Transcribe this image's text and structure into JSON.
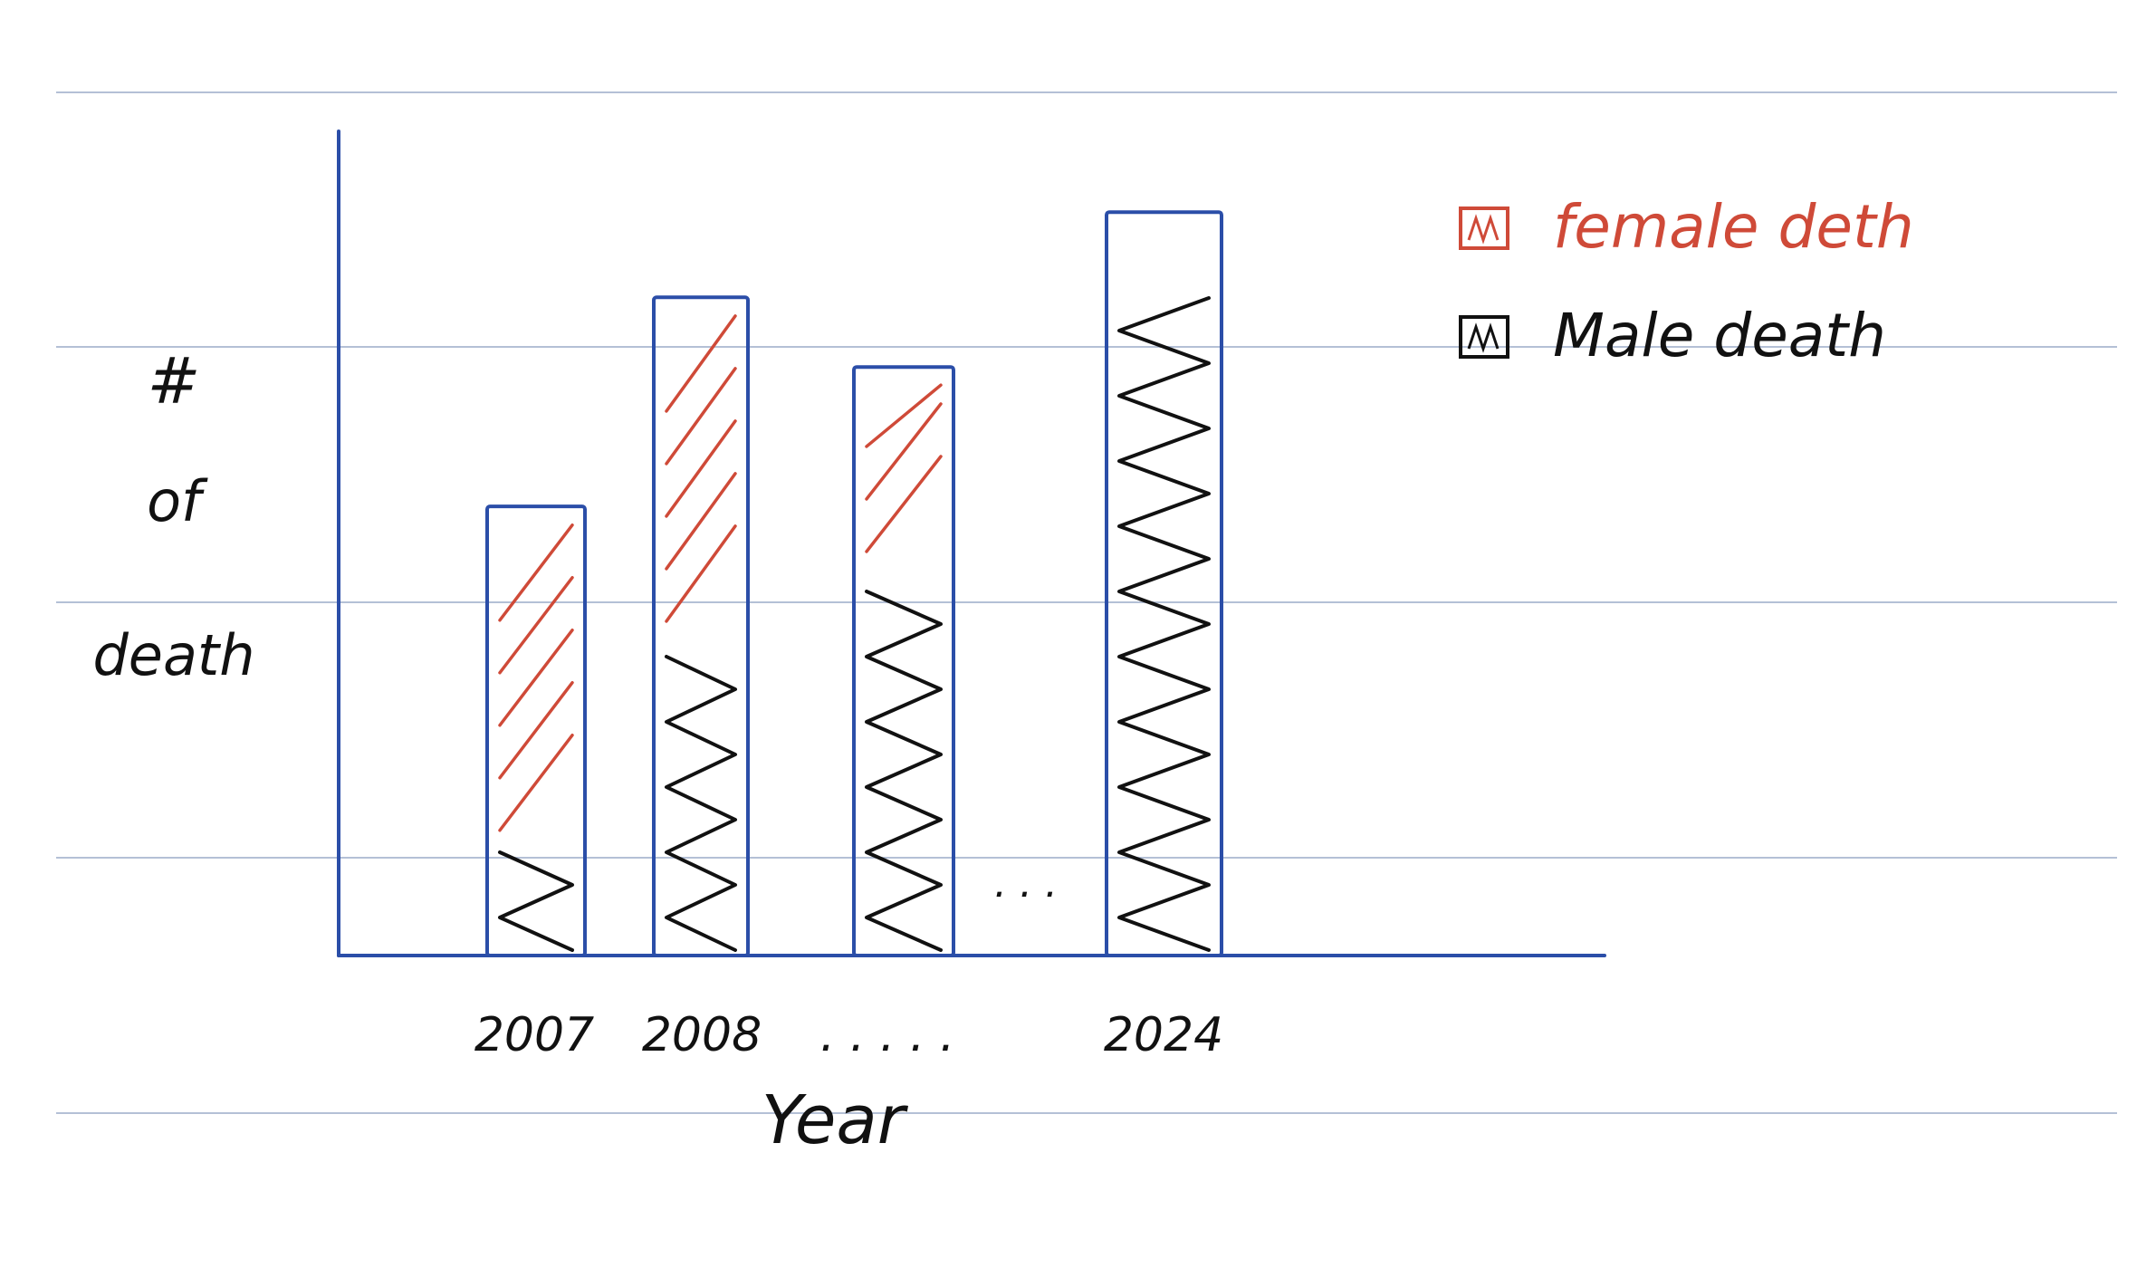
{
  "page": {
    "ruled_line_color": "#b4c0d6",
    "ink_colors": {
      "axis": "#2b4ea8",
      "female": "#cf4a38",
      "male": "#111111"
    }
  },
  "chart_data": {
    "type": "bar",
    "stacked": true,
    "hand_drawn": true,
    "title": "",
    "xlabel": "Year",
    "ylabel_lines": [
      "#",
      "of",
      "death"
    ],
    "categories": [
      "2007",
      "2008",
      "",
      "2024"
    ],
    "x_tick_labels": [
      "2007",
      "2008",
      ". . . . .",
      "2024"
    ],
    "gap_marker": ". . .",
    "y_ticks_shown": false,
    "y_units": "relative fraction of axis height",
    "ylim": [
      0,
      1
    ],
    "series": [
      {
        "name": "Male death",
        "color": "#111111",
        "hatch": "zigzag",
        "values": [
          0.15,
          0.42,
          0.51,
          0.9
        ]
      },
      {
        "name": "female deth",
        "color": "#cf4a38",
        "hatch": "diagonal",
        "values": [
          0.43,
          0.43,
          0.25,
          0.06
        ]
      }
    ],
    "legend": {
      "position": "top-right",
      "entries": [
        {
          "label": "female deth",
          "color": "#cf4a38"
        },
        {
          "label": "Male death",
          "color": "#111111"
        }
      ]
    }
  }
}
